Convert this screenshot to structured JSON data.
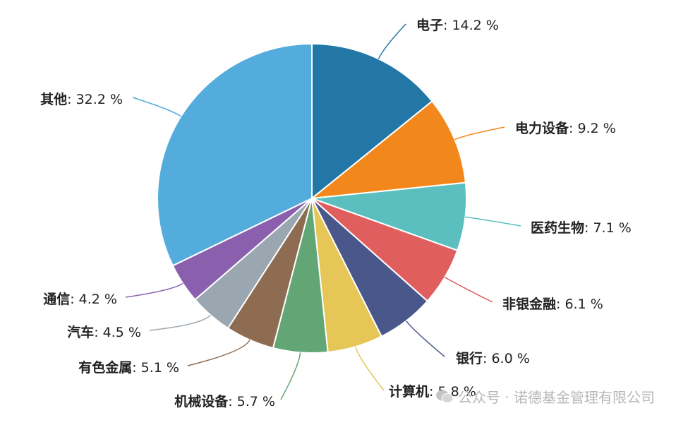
{
  "chart_data": {
    "type": "pie",
    "slices": [
      {
        "name": "电子",
        "value": 14.2,
        "label": "14.2 %",
        "color": "#2277a6"
      },
      {
        "name": "电力设备",
        "value": 9.2,
        "label": "9.2 %",
        "color": "#f2881c"
      },
      {
        "name": "医药生物",
        "value": 7.1,
        "label": "7.1 %",
        "color": "#5bbfc0"
      },
      {
        "name": "非银金融",
        "value": 6.1,
        "label": "6.1 %",
        "color": "#e05e5e"
      },
      {
        "name": "银行",
        "value": 6.0,
        "label": "6.0 %",
        "color": "#4a578b"
      },
      {
        "name": "计算机",
        "value": 5.8,
        "label": "5.8 %",
        "color": "#e6c657"
      },
      {
        "name": "机械设备",
        "value": 5.7,
        "label": "5.7 %",
        "color": "#62a676"
      },
      {
        "name": "有色金属",
        "value": 5.1,
        "label": "5.1 %",
        "color": "#8e6c52"
      },
      {
        "name": "汽车",
        "value": 4.5,
        "label": "4.5 %",
        "color": "#9aa7b1"
      },
      {
        "name": "通信",
        "value": 4.2,
        "label": "4.2 %",
        "color": "#8a5fae"
      },
      {
        "name": "其他",
        "value": 32.2,
        "label": "32.2 %",
        "color": "#53acdc"
      }
    ]
  },
  "watermark": {
    "text": "公众号 · 诺德基金管理有限公司",
    "icon": "wechat-icon"
  }
}
